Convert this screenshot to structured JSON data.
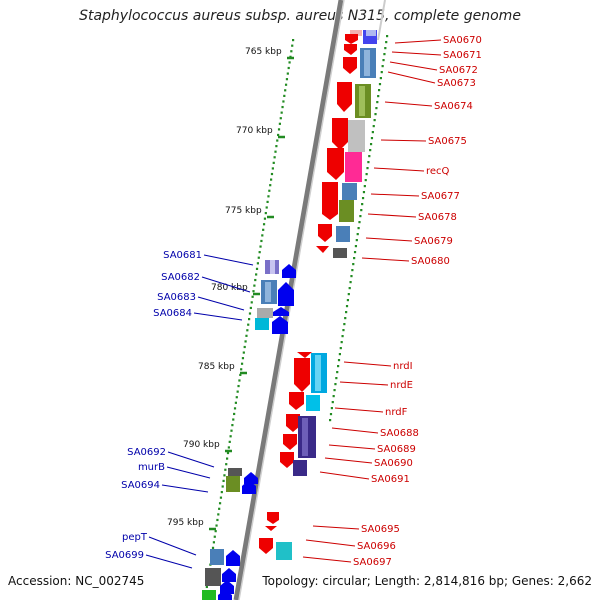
{
  "title": "Staphylococcus aureus subsp. aureus N315, complete genome",
  "footer": {
    "accession": "Accession: NC_002745",
    "topology": "Topology: circular; Length: 2,814,816 bp; Genes: 2,662"
  },
  "colors": {
    "backbone": "#808080",
    "forward_gene": "#ee0000",
    "reverse_gene": "#0000ee",
    "right_label": "#cc0000",
    "left_label": "#0000aa",
    "tick": "#228b22"
  },
  "scale_labels": [
    "765 kbp",
    "770 kbp",
    "775 kbp",
    "780 kbp",
    "785 kbp",
    "790 kbp",
    "795 kbp"
  ],
  "right_labels": [
    "SA0670",
    "SA0671",
    "SA0672",
    "SA0673",
    "SA0674",
    "SA0675",
    "recQ",
    "SA0677",
    "SA0678",
    "SA0679",
    "SA0680",
    "nrdI",
    "nrdE",
    "nrdF",
    "SA0688",
    "SA0689",
    "SA0690",
    "SA0691",
    "SA0695",
    "SA0696",
    "SA0697"
  ],
  "left_labels": [
    "SA0681",
    "SA0682",
    "SA0683",
    "SA0684",
    "SA0692",
    "murB",
    "SA0694",
    "pepT",
    "SA0699"
  ]
}
